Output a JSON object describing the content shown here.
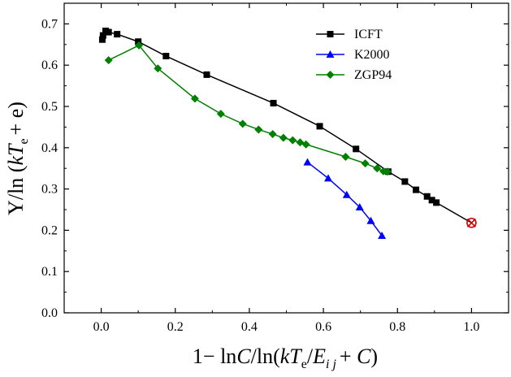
{
  "chart_data": {
    "type": "line",
    "xlim": [
      -0.1,
      1.1
    ],
    "ylim": [
      0.0,
      0.75
    ],
    "xticks": [
      0.0,
      0.2,
      0.4,
      0.6,
      0.8,
      1.0
    ],
    "xtick_labels": [
      "0.0",
      "0.2",
      "0.4",
      "0.6",
      "0.8",
      "1.0"
    ],
    "yticks": [
      0.0,
      0.1,
      0.2,
      0.3,
      0.4,
      0.5,
      0.6,
      0.7
    ],
    "ytick_labels": [
      "0.0",
      "0.1",
      "0.2",
      "0.3",
      "0.4",
      "0.5",
      "0.6",
      "0.7"
    ],
    "xlabel": {
      "prefix": "1− ln",
      "C1": "C",
      "mid": "/ln(",
      "kT": "kT",
      "sub_e": "e",
      "slash": "/",
      "E": "E",
      "sub_ij": "i j",
      "plus": "+ ",
      "C2": "C",
      "close": ")"
    },
    "ylabel": {
      "upsilon": "Υ",
      "mid": "/ln (",
      "kT": "kT",
      "sub_e": "e",
      "tail": "+ e)"
    },
    "grid": false,
    "legend_position": "top-right",
    "series": [
      {
        "name": "ICFT",
        "color": "#000000",
        "marker": "square",
        "x": [
          0.003,
          0.005,
          0.012,
          0.02,
          0.043,
          0.1,
          0.175,
          0.285,
          0.465,
          0.59,
          0.688,
          0.775,
          0.82,
          0.85,
          0.88,
          0.893,
          0.905
        ],
        "y": [
          0.662,
          0.672,
          0.683,
          0.68,
          0.675,
          0.657,
          0.622,
          0.577,
          0.508,
          0.452,
          0.397,
          0.342,
          0.318,
          0.298,
          0.282,
          0.273,
          0.267
        ]
      },
      {
        "name": "K2000",
        "color": "#0000ff",
        "marker": "triangle",
        "x": [
          0.557,
          0.613,
          0.663,
          0.698,
          0.728,
          0.758
        ],
        "y": [
          0.365,
          0.326,
          0.286,
          0.256,
          0.223,
          0.187
        ]
      },
      {
        "name": "ZGP94",
        "color": "#008000",
        "marker": "diamond",
        "x": [
          0.02,
          0.102,
          0.153,
          0.253,
          0.323,
          0.382,
          0.425,
          0.463,
          0.492,
          0.517,
          0.537,
          0.553,
          0.66,
          0.713,
          0.745,
          0.762,
          0.773
        ],
        "y": [
          0.612,
          0.648,
          0.592,
          0.519,
          0.482,
          0.458,
          0.444,
          0.433,
          0.424,
          0.418,
          0.413,
          0.408,
          0.378,
          0.362,
          0.35,
          0.343,
          0.342
        ]
      }
    ],
    "annotations": [
      {
        "type": "circled-x-marker",
        "x": 1.0,
        "y": 0.218,
        "color": "#cc0000",
        "connects_series": "ICFT"
      }
    ]
  }
}
